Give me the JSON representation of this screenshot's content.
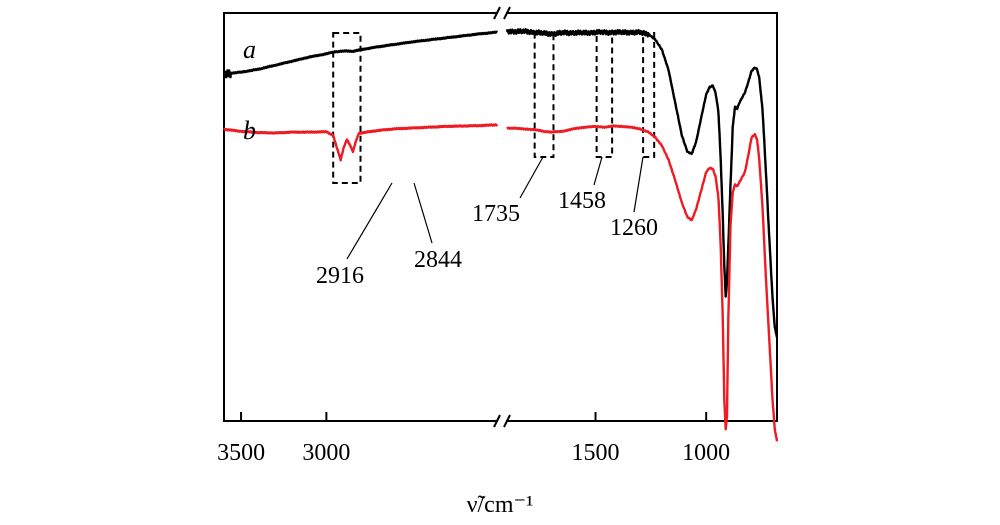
{
  "chart_data": {
    "type": "line",
    "title": "",
    "xlabel": "ν̃/cm⁻¹",
    "ylabel": "",
    "x_axis": {
      "reversed": true,
      "broken": true,
      "segments": [
        {
          "xlim": [
            3600,
            2000
          ]
        },
        {
          "xlim": [
            1900,
            680
          ]
        }
      ],
      "ticks": [
        {
          "value": 3500,
          "label": "3500"
        },
        {
          "value": 3000,
          "label": "3000"
        },
        {
          "value": 1500,
          "label": "1500"
        },
        {
          "value": 1000,
          "label": "1000"
        }
      ]
    },
    "ylim": [
      0,
      1
    ],
    "grid": false,
    "legend": "none",
    "series": [
      {
        "name": "a",
        "color": "#000000",
        "points": [
          [
            3600,
            0.848
          ],
          [
            3570,
            0.852
          ],
          [
            3500,
            0.855
          ],
          [
            3400,
            0.862
          ],
          [
            3300,
            0.872
          ],
          [
            3200,
            0.882
          ],
          [
            3100,
            0.892
          ],
          [
            3000,
            0.9
          ],
          [
            2950,
            0.905
          ],
          [
            2916,
            0.906
          ],
          [
            2880,
            0.907
          ],
          [
            2844,
            0.906
          ],
          [
            2800,
            0.91
          ],
          [
            2700,
            0.917
          ],
          [
            2600,
            0.923
          ],
          [
            2500,
            0.929
          ],
          [
            2400,
            0.934
          ],
          [
            2300,
            0.939
          ],
          [
            2200,
            0.944
          ],
          [
            2100,
            0.949
          ],
          [
            2000,
            0.953
          ],
          [
            1900,
            0.955
          ],
          [
            1850,
            0.955
          ],
          [
            1800,
            0.954
          ],
          [
            1760,
            0.952
          ],
          [
            1735,
            0.95
          ],
          [
            1700,
            0.949
          ],
          [
            1650,
            0.951
          ],
          [
            1600,
            0.952
          ],
          [
            1550,
            0.951
          ],
          [
            1500,
            0.953
          ],
          [
            1458,
            0.952
          ],
          [
            1420,
            0.953
          ],
          [
            1380,
            0.952
          ],
          [
            1340,
            0.953
          ],
          [
            1300,
            0.952
          ],
          [
            1260,
            0.948
          ],
          [
            1230,
            0.935
          ],
          [
            1200,
            0.91
          ],
          [
            1170,
            0.86
          ],
          [
            1140,
            0.78
          ],
          [
            1110,
            0.7
          ],
          [
            1085,
            0.66
          ],
          [
            1065,
            0.655
          ],
          [
            1045,
            0.685
          ],
          [
            1020,
            0.75
          ],
          [
            1000,
            0.8
          ],
          [
            985,
            0.818
          ],
          [
            970,
            0.822
          ],
          [
            958,
            0.805
          ],
          [
            945,
            0.76
          ],
          [
            935,
            0.65
          ],
          [
            925,
            0.5
          ],
          [
            918,
            0.38
          ],
          [
            912,
            0.305
          ],
          [
            906,
            0.34
          ],
          [
            900,
            0.43
          ],
          [
            890,
            0.58
          ],
          [
            880,
            0.72
          ],
          [
            870,
            0.77
          ],
          [
            860,
            0.765
          ],
          [
            850,
            0.78
          ],
          [
            840,
            0.79
          ],
          [
            825,
            0.805
          ],
          [
            810,
            0.83
          ],
          [
            795,
            0.858
          ],
          [
            780,
            0.866
          ],
          [
            770,
            0.862
          ],
          [
            760,
            0.84
          ],
          [
            745,
            0.76
          ],
          [
            730,
            0.61
          ],
          [
            715,
            0.45
          ],
          [
            700,
            0.3
          ],
          [
            690,
            0.23
          ],
          [
            680,
            0.205
          ]
        ]
      },
      {
        "name": "b",
        "color": "#ee1b24",
        "points": [
          [
            3600,
            0.715
          ],
          [
            3500,
            0.71
          ],
          [
            3400,
            0.707
          ],
          [
            3300,
            0.706
          ],
          [
            3200,
            0.708
          ],
          [
            3100,
            0.708
          ],
          [
            3000,
            0.709
          ],
          [
            2960,
            0.7
          ],
          [
            2935,
            0.665
          ],
          [
            2916,
            0.64
          ],
          [
            2900,
            0.668
          ],
          [
            2880,
            0.69
          ],
          [
            2860,
            0.675
          ],
          [
            2844,
            0.66
          ],
          [
            2830,
            0.682
          ],
          [
            2810,
            0.705
          ],
          [
            2700,
            0.712
          ],
          [
            2600,
            0.716
          ],
          [
            2500,
            0.718
          ],
          [
            2400,
            0.72
          ],
          [
            2300,
            0.722
          ],
          [
            2200,
            0.723
          ],
          [
            2100,
            0.724
          ],
          [
            2000,
            0.726
          ],
          [
            1900,
            0.718
          ],
          [
            1850,
            0.717
          ],
          [
            1800,
            0.715
          ],
          [
            1760,
            0.713
          ],
          [
            1735,
            0.71
          ],
          [
            1700,
            0.708
          ],
          [
            1650,
            0.71
          ],
          [
            1600,
            0.716
          ],
          [
            1550,
            0.72
          ],
          [
            1500,
            0.722
          ],
          [
            1458,
            0.72
          ],
          [
            1420,
            0.723
          ],
          [
            1380,
            0.722
          ],
          [
            1340,
            0.72
          ],
          [
            1300,
            0.716
          ],
          [
            1260,
            0.708
          ],
          [
            1230,
            0.695
          ],
          [
            1200,
            0.675
          ],
          [
            1170,
            0.64
          ],
          [
            1140,
            0.59
          ],
          [
            1110,
            0.535
          ],
          [
            1085,
            0.5
          ],
          [
            1065,
            0.492
          ],
          [
            1045,
            0.52
          ],
          [
            1020,
            0.57
          ],
          [
            1000,
            0.61
          ],
          [
            985,
            0.62
          ],
          [
            970,
            0.618
          ],
          [
            958,
            0.6
          ],
          [
            945,
            0.55
          ],
          [
            935,
            0.44
          ],
          [
            925,
            0.25
          ],
          [
            918,
            0.05
          ],
          [
            912,
            -0.02
          ],
          [
            906,
            0.01
          ],
          [
            900,
            0.25
          ],
          [
            890,
            0.48
          ],
          [
            880,
            0.56
          ],
          [
            870,
            0.58
          ],
          [
            860,
            0.575
          ],
          [
            850,
            0.585
          ],
          [
            840,
            0.595
          ],
          [
            825,
            0.61
          ],
          [
            810,
            0.65
          ],
          [
            795,
            0.695
          ],
          [
            780,
            0.702
          ],
          [
            770,
            0.69
          ],
          [
            760,
            0.64
          ],
          [
            745,
            0.52
          ],
          [
            730,
            0.35
          ],
          [
            715,
            0.2
          ],
          [
            700,
            0.05
          ],
          [
            690,
            -0.02
          ],
          [
            680,
            -0.05
          ]
        ]
      }
    ],
    "annotations": [
      {
        "label": "2916",
        "x": 2916,
        "series": "b"
      },
      {
        "label": "2844",
        "x": 2844,
        "series": "b"
      },
      {
        "label": "1735",
        "x": 1735,
        "series": "b"
      },
      {
        "label": "1458",
        "x": 1458,
        "series": "b"
      },
      {
        "label": "1260",
        "x": 1260,
        "series": "b"
      }
    ],
    "highlight_boxes": [
      {
        "x_from": 2960,
        "x_to": 2800
      },
      {
        "x_from": 1775,
        "x_to": 1690
      },
      {
        "x_from": 1495,
        "x_to": 1425
      },
      {
        "x_from": 1285,
        "x_to": 1235
      }
    ]
  }
}
